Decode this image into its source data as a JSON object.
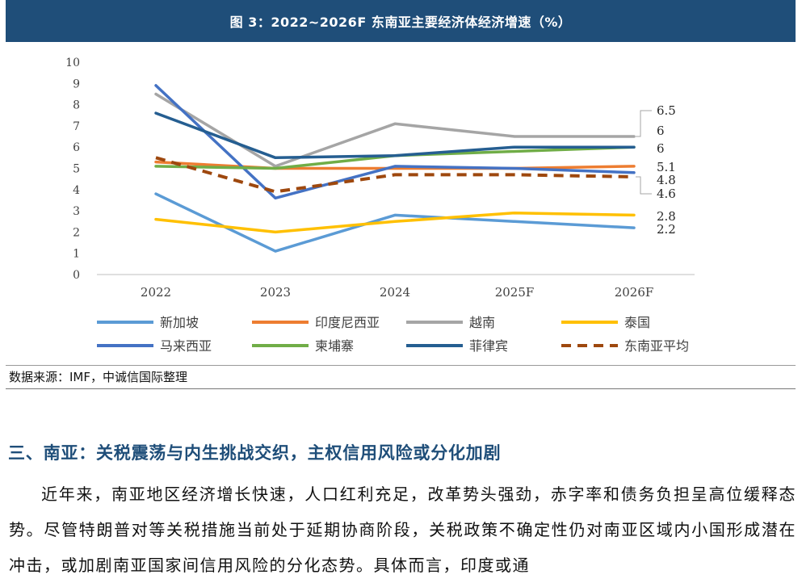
{
  "figure": {
    "title": "图 3：2022~2026F 东南亚主要经济体经济增速（%）",
    "source": "数据来源：IMF，中诚信国际整理"
  },
  "chart_data": {
    "type": "line",
    "x": [
      "2022",
      "2023",
      "2024",
      "2025F",
      "2026F"
    ],
    "ylim": [
      0,
      10
    ],
    "yticks": [
      "0",
      "1",
      "2",
      "3",
      "4",
      "5",
      "6",
      "7",
      "8",
      "9",
      "10"
    ],
    "grid": false,
    "legend_position": "bottom",
    "series": [
      {
        "name": "新加坡",
        "color": "#5b9bd5",
        "dash": false,
        "values": [
          3.8,
          1.1,
          2.8,
          2.5,
          2.2
        ],
        "end_label": "2.2"
      },
      {
        "name": "印度尼西亚",
        "color": "#ed7d31",
        "dash": false,
        "values": [
          5.3,
          5.0,
          5.0,
          5.0,
          5.1
        ],
        "end_label": "5.1"
      },
      {
        "name": "越南",
        "color": "#a5a5a5",
        "dash": false,
        "values": [
          8.5,
          5.1,
          7.1,
          6.5,
          6.5
        ],
        "end_label": "6.5"
      },
      {
        "name": "泰国",
        "color": "#ffc000",
        "dash": false,
        "values": [
          2.6,
          2.0,
          2.5,
          2.9,
          2.8
        ],
        "end_label": "2.8"
      },
      {
        "name": "马来西亚",
        "color": "#4472c4",
        "dash": false,
        "values": [
          8.9,
          3.6,
          5.1,
          5.0,
          4.8
        ],
        "end_label": "4.8"
      },
      {
        "name": "柬埔寨",
        "color": "#70ad47",
        "dash": false,
        "values": [
          5.1,
          5.0,
          5.6,
          5.8,
          6.0
        ],
        "end_label": "6"
      },
      {
        "name": "菲律宾",
        "color": "#255e91",
        "dash": false,
        "values": [
          7.6,
          5.5,
          5.6,
          6.0,
          6.0
        ],
        "end_label": "6"
      },
      {
        "name": "东南亚平均",
        "color": "#9e480e",
        "dash": true,
        "values": [
          5.5,
          3.9,
          4.7,
          4.7,
          4.6
        ],
        "end_label": "4.6"
      }
    ]
  },
  "section": {
    "heading": "三、南亚：关税震荡与内生挑战交织，主权信用风险或分化加剧",
    "paragraph": "近年来，南亚地区经济增长快速，人口红利充足，改革势头强劲，赤字率和债务负担呈高位缓释态势。尽管特朗普对等关税措施当前处于延期协商阶段，关税政策不确定性仍对南亚区域内小国形成潜在冲击，或加剧南亚国家间信用风险的分化态势。具体而言，印度或通"
  }
}
